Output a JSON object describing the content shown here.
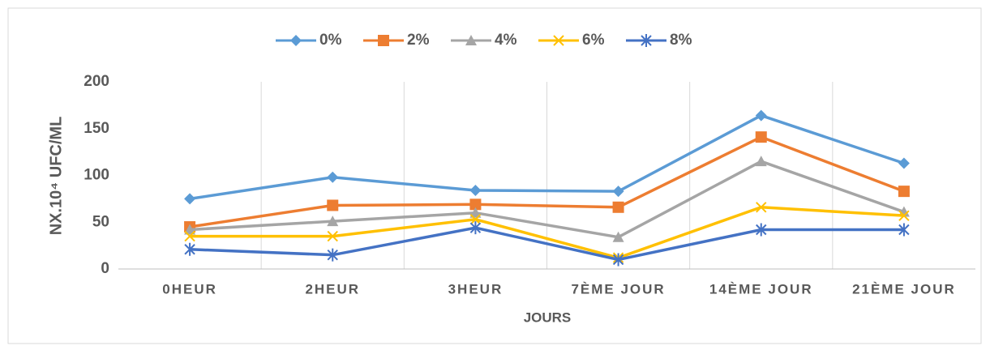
{
  "chart_data": {
    "type": "line",
    "y_label": "NX.10⁴  UFC/ML",
    "x_label": "JOURS",
    "categories": [
      "0HEUR",
      "2HEUR",
      "3HEUR",
      "7ÈME JOUR",
      "14ÈME JOUR",
      "21ÈME JOUR"
    ],
    "series": [
      {
        "name": "0%",
        "color": "#5b9bd5",
        "marker": "diamond",
        "values": [
          75,
          98,
          84,
          83,
          164,
          113
        ]
      },
      {
        "name": "2%",
        "color": "#ed7d31",
        "marker": "square",
        "values": [
          45,
          68,
          69,
          66,
          141,
          83
        ]
      },
      {
        "name": "4%",
        "color": "#a5a5a5",
        "marker": "triangle",
        "values": [
          42,
          51,
          60,
          34,
          115,
          61
        ]
      },
      {
        "name": "6%",
        "color": "#ffc000",
        "marker": "x",
        "values": [
          35,
          35,
          53,
          12,
          66,
          57
        ]
      },
      {
        "name": "8%",
        "color": "#4472c4",
        "marker": "star",
        "values": [
          21,
          15,
          44,
          10,
          42,
          42
        ]
      }
    ],
    "ylim": [
      0,
      200
    ],
    "yticks": [
      0,
      50,
      100,
      150,
      200
    ],
    "legend": "top"
  }
}
